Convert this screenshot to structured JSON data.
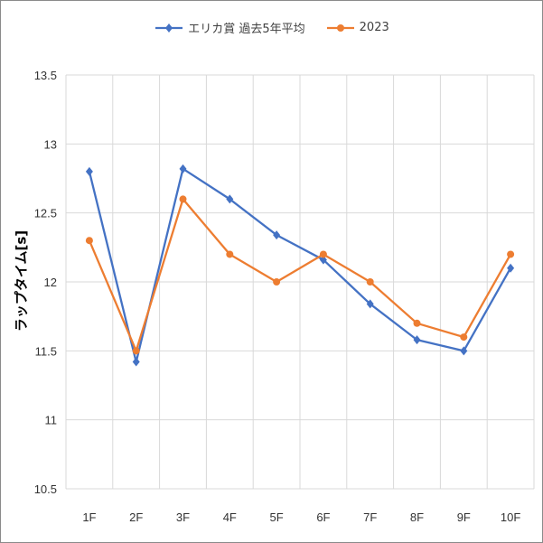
{
  "chart_data": {
    "type": "line",
    "title": "",
    "xlabel": "",
    "ylabel": "ラップタイム[s]",
    "categories": [
      "1F",
      "2F",
      "3F",
      "4F",
      "5F",
      "6F",
      "7F",
      "8F",
      "9F",
      "10F"
    ],
    "ylim": [
      10.5,
      13.5
    ],
    "yticks": [
      "10.5",
      "11",
      "11.5",
      "12",
      "12.5",
      "13",
      "13.5"
    ],
    "grid": true,
    "legend": "top",
    "series": [
      {
        "name": "エリカ賞 過去5年平均",
        "color": "#4472c4",
        "marker": "diamond",
        "values": [
          12.8,
          11.42,
          12.82,
          12.6,
          12.34,
          12.16,
          11.84,
          11.58,
          11.5,
          12.1
        ]
      },
      {
        "name": "2023",
        "color": "#ed7d31",
        "marker": "circle",
        "values": [
          12.3,
          11.5,
          12.6,
          12.2,
          12.0,
          12.2,
          12.0,
          11.7,
          11.6,
          12.2
        ]
      }
    ]
  }
}
